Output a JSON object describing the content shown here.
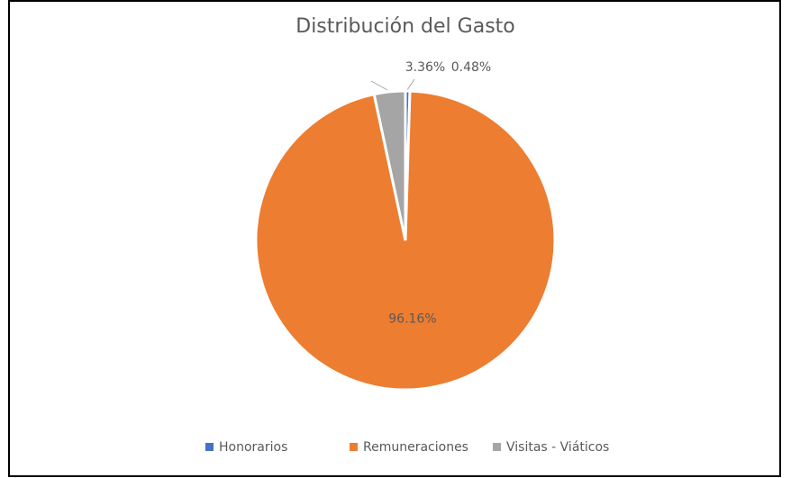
{
  "chart_data": {
    "type": "pie",
    "title": "Distribución del Gasto",
    "categories": [
      "Honorarios",
      "Remuneraciones",
      "Visitas - Viáticos"
    ],
    "values": [
      0.48,
      96.16,
      3.36
    ],
    "value_labels": [
      "0.48%",
      "96.16%",
      "3.36%"
    ],
    "colors": [
      "#4472c4",
      "#ed7d31",
      "#a5a5a5"
    ],
    "legend": "bottom"
  }
}
